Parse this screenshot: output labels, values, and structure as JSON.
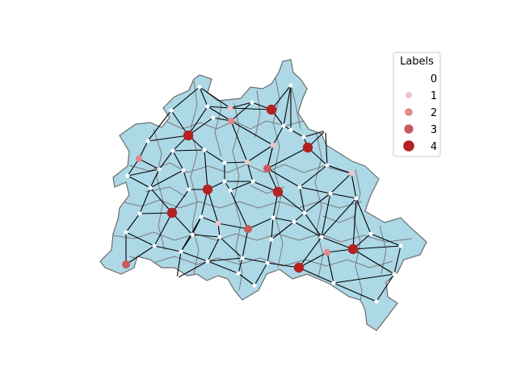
{
  "colors": {
    "land": "#add8e6",
    "district_border": "#7a7a7a",
    "edge": "#000000",
    "node_label_0": "#ffffff",
    "node_label_1": "#efc4c4",
    "node_label_2": "#dc8c8c",
    "node_label_3": "#c85a5a",
    "node_label_4": "#b22222"
  },
  "legend": {
    "title": "Labels",
    "entries": [
      {
        "label": "0",
        "level": 0
      },
      {
        "label": "1",
        "level": 1
      },
      {
        "label": "2",
        "level": 2
      },
      {
        "label": "3",
        "level": 3
      },
      {
        "label": "4",
        "level": 4
      }
    ]
  },
  "graph": {
    "node_levels": [
      0,
      0,
      1,
      4,
      0,
      0,
      0,
      0,
      4,
      2,
      1,
      0,
      2,
      0,
      1,
      0,
      4,
      0,
      0,
      1,
      0,
      3,
      0,
      0,
      0,
      0,
      0,
      0,
      4,
      4,
      0,
      0,
      0,
      0,
      0,
      0,
      4,
      0,
      0,
      0,
      0,
      1,
      0,
      3,
      0,
      0,
      0,
      0,
      0,
      0,
      0,
      0,
      0,
      0,
      0,
      0,
      4,
      0,
      4,
      0,
      0,
      2,
      3,
      0,
      0,
      0,
      0,
      0
    ]
  }
}
